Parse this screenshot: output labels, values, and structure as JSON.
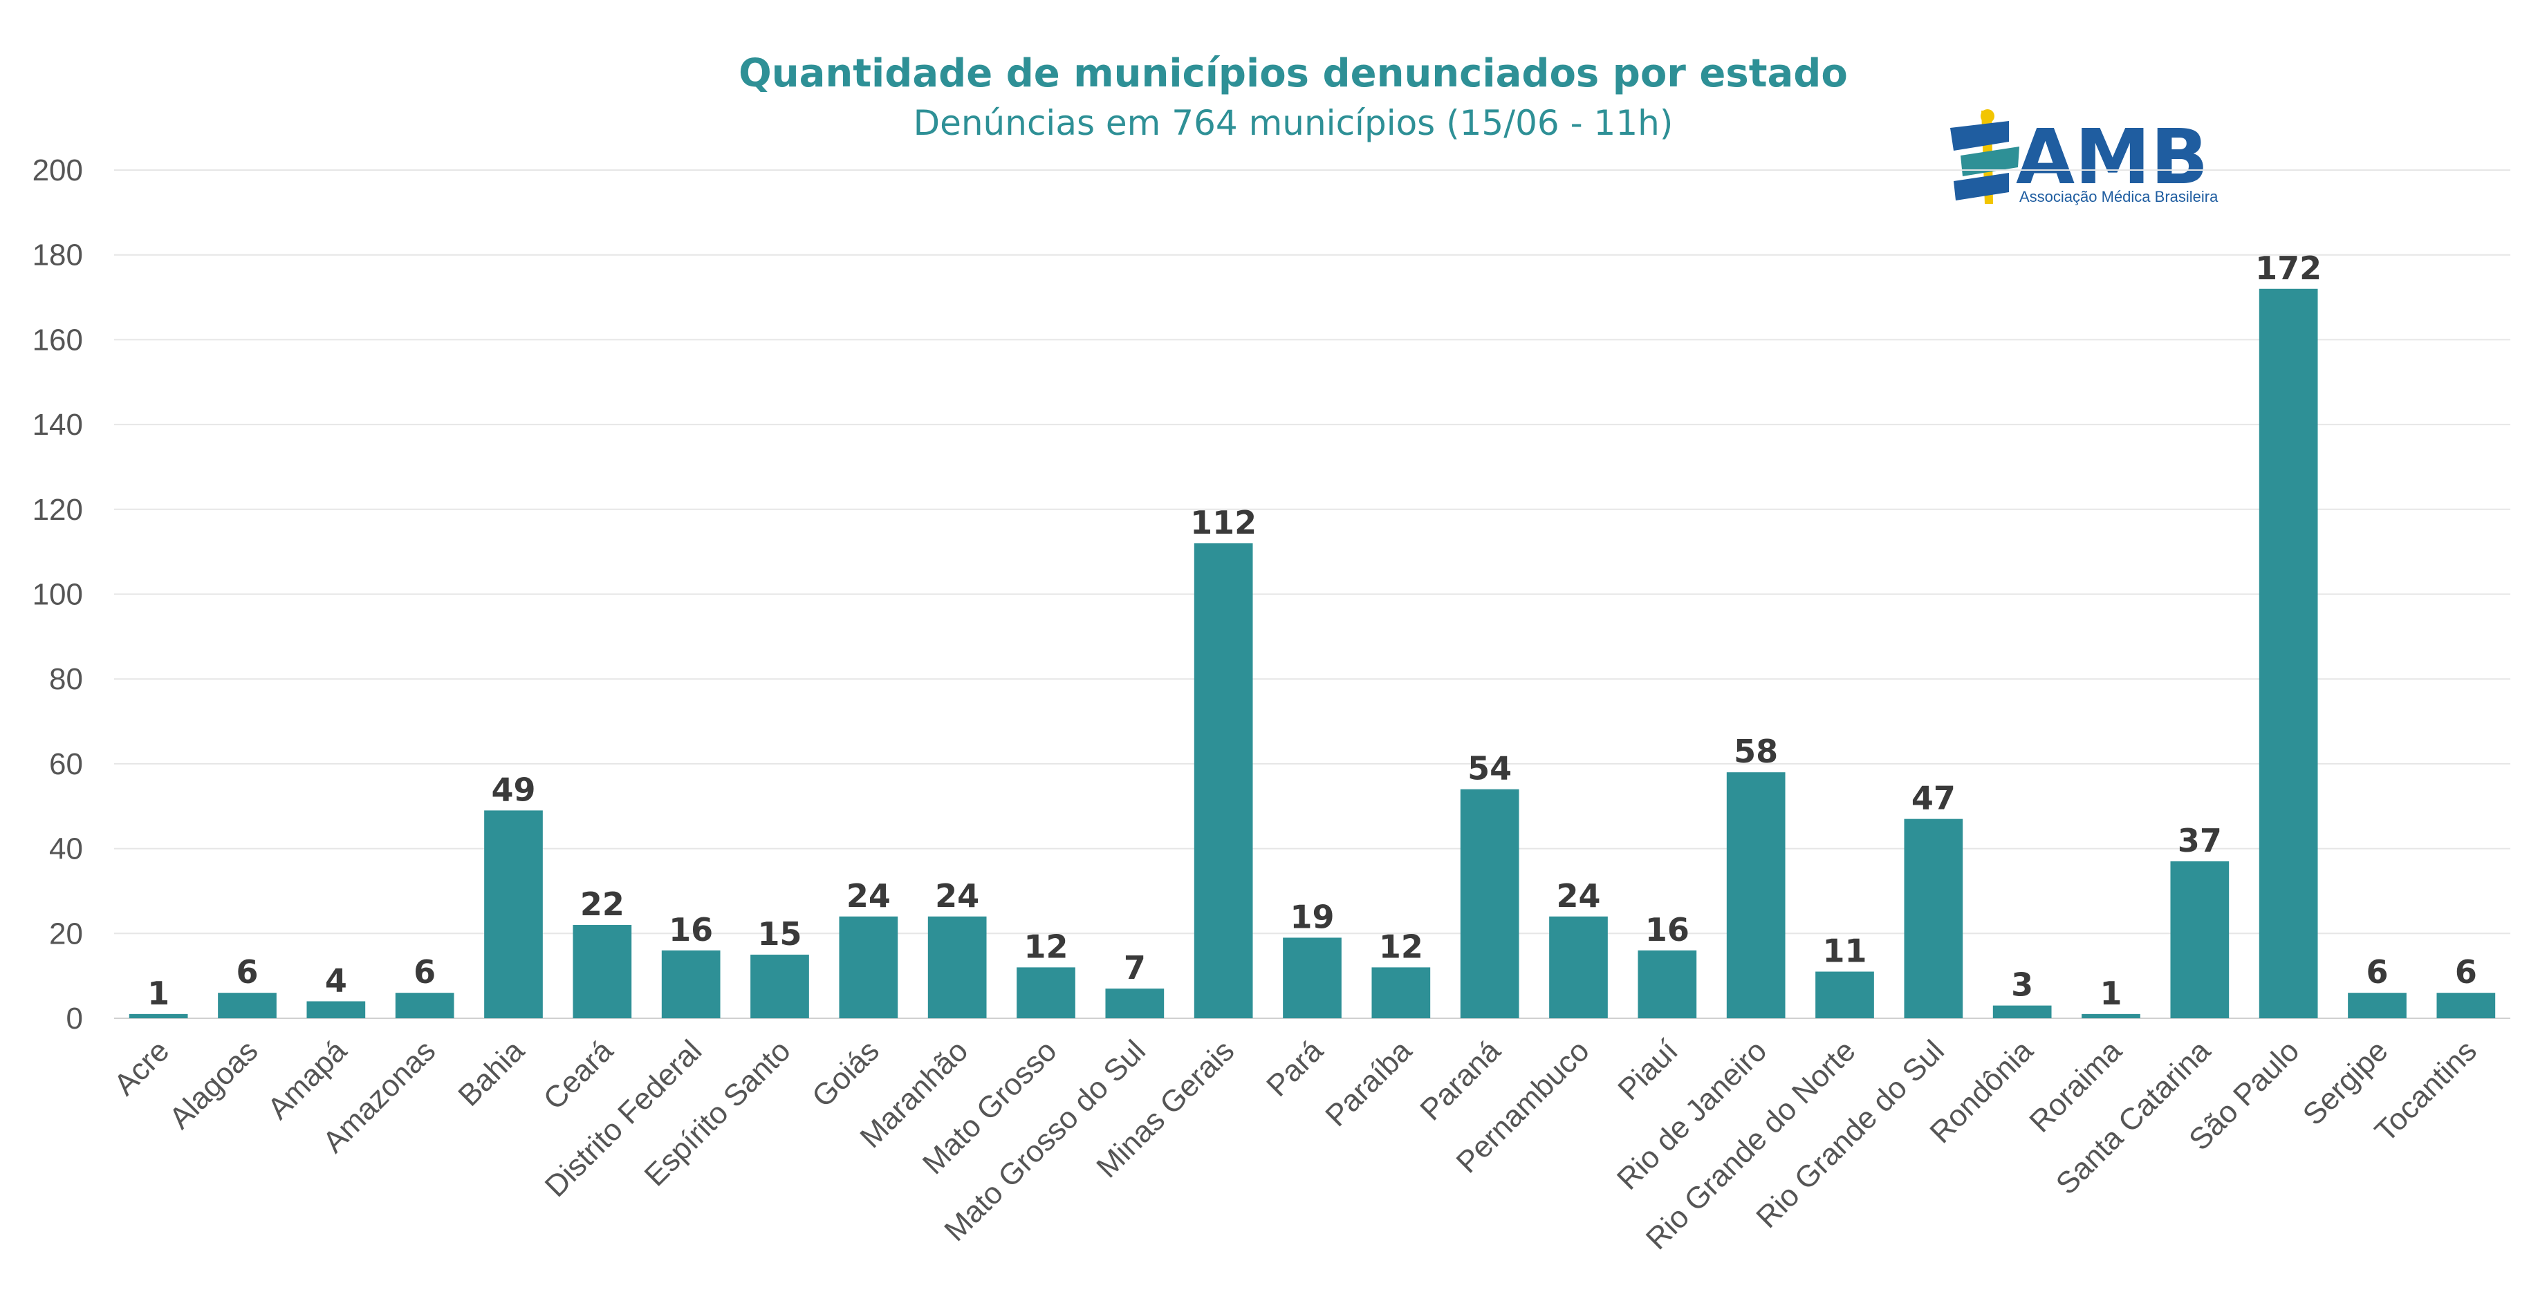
{
  "chart_data": {
    "type": "bar",
    "title": "Quantidade de municípios denunciados por estado",
    "subtitle": "Denúncias em 764 municípios (15/06 - 11h)",
    "categories": [
      "Acre",
      "Alagoas",
      "Amapá",
      "Amazonas",
      "Bahia",
      "Ceará",
      "Distrito Federal",
      "Espírito Santo",
      "Goiás",
      "Maranhão",
      "Mato Grosso",
      "Mato Grosso do Sul",
      "Minas Gerais",
      "Pará",
      "Paraíba",
      "Paraná",
      "Pernambuco",
      "Piauí",
      "Rio de Janeiro",
      "Rio Grande do Norte",
      "Rio Grande do Sul",
      "Rondônia",
      "Roraima",
      "Santa Catarina",
      "São Paulo",
      "Sergipe",
      "Tocantins"
    ],
    "values": [
      1,
      6,
      4,
      6,
      49,
      22,
      16,
      15,
      24,
      24,
      12,
      7,
      112,
      19,
      12,
      54,
      24,
      16,
      58,
      11,
      47,
      3,
      1,
      37,
      172,
      6,
      6
    ],
    "ylim": [
      0,
      200
    ],
    "yticks": [
      0,
      20,
      40,
      60,
      80,
      100,
      120,
      140,
      160,
      180,
      200
    ],
    "grid": true,
    "legend": "none",
    "bar_color": "#2e9096",
    "data_labels": true
  },
  "logo": {
    "name": "AMB",
    "tagline": "Associação Médica Brasileira",
    "icon": "caduceus-flag-icon",
    "primary_color": "#1f5da0",
    "accent_color": "#f2c500"
  }
}
